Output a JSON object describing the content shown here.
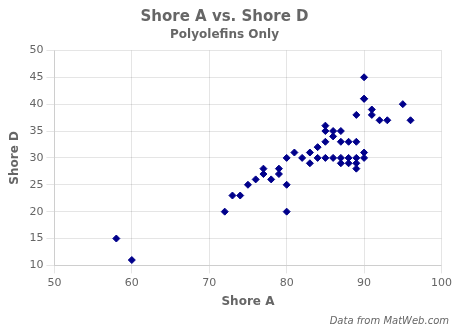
{
  "chart_data": {
    "type": "scatter",
    "title": "Shore A vs. Shore D",
    "subtitle": "Polyolefins Only",
    "xlabel": "Shore A",
    "ylabel": "Shore D",
    "annotations": [
      "Data from MatWeb.com"
    ],
    "x": [
      58,
      60,
      72,
      73,
      74,
      75,
      76,
      77,
      77,
      78,
      79,
      79,
      80,
      80,
      80,
      81,
      82,
      83,
      83,
      84,
      84,
      85,
      85,
      85,
      85,
      86,
      86,
      86,
      87,
      87,
      87,
      87,
      88,
      88,
      88,
      89,
      89,
      89,
      89,
      89,
      90,
      90,
      90,
      90,
      90,
      91,
      91,
      92,
      93,
      95,
      96
    ],
    "values": [
      15,
      11,
      20,
      23,
      23,
      25,
      26,
      27,
      28,
      26,
      27,
      28,
      20,
      25,
      30,
      31,
      30,
      29,
      31,
      30,
      32,
      30,
      33,
      35,
      36,
      30,
      34,
      35,
      29,
      30,
      33,
      35,
      29,
      30,
      33,
      28,
      29,
      30,
      33,
      38,
      41,
      41,
      45,
      30,
      31,
      38,
      39,
      37,
      37,
      40,
      37
    ],
    "color": "#00008B",
    "marker": "diamond",
    "xlim": [
      50,
      100
    ],
    "ylim": [
      10,
      50
    ],
    "xticks": [
      50,
      60,
      70,
      80,
      90,
      100
    ],
    "yticks": [
      10,
      15,
      20,
      25,
      30,
      35,
      40,
      45,
      50
    ],
    "grid": true
  }
}
